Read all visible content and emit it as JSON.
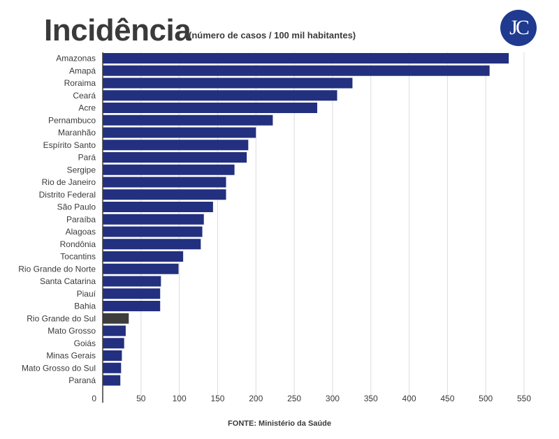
{
  "title": "Incidência",
  "subtitle": "(número de casos / 100 mil habitantes)",
  "logo_text": "JC",
  "source": "FONTE: Ministério da Saúde",
  "colors": {
    "bar": "#23307f",
    "highlight": "#3d3d3d",
    "grid": "#dcdcdc",
    "axis": "#3a3a3a",
    "logo": "#1f3a8f"
  },
  "chart_data": {
    "type": "bar",
    "orientation": "horizontal",
    "categories": [
      "Amazonas",
      "Amapá",
      "Roraima",
      "Ceará",
      "Acre",
      "Pernambuco",
      "Maranhão",
      "Espírito Santo",
      "Pará",
      "Sergipe",
      "Rio de Janeiro",
      "Distrito Federal",
      "São Paulo",
      "Paraíba",
      "Alagoas",
      "Rondônia",
      "Tocantins",
      "Rio Grande do Norte",
      "Santa Catarina",
      "Piauí",
      "Bahia",
      "Rio Grande do Sul",
      "Mato Grosso",
      "Goiás",
      "Minas Gerais",
      "Mato Grosso do Sul",
      "Paraná"
    ],
    "values": [
      530,
      505,
      326,
      306,
      280,
      222,
      200,
      190,
      188,
      172,
      161,
      161,
      144,
      132,
      130,
      128,
      105,
      99,
      76,
      75,
      75,
      34,
      30,
      28,
      25,
      24,
      23
    ],
    "highlight": "Rio Grande do Sul",
    "xlim": [
      0,
      550
    ],
    "xticks": [
      0,
      50,
      100,
      150,
      200,
      250,
      300,
      350,
      400,
      450,
      500,
      550
    ],
    "grid": true
  }
}
